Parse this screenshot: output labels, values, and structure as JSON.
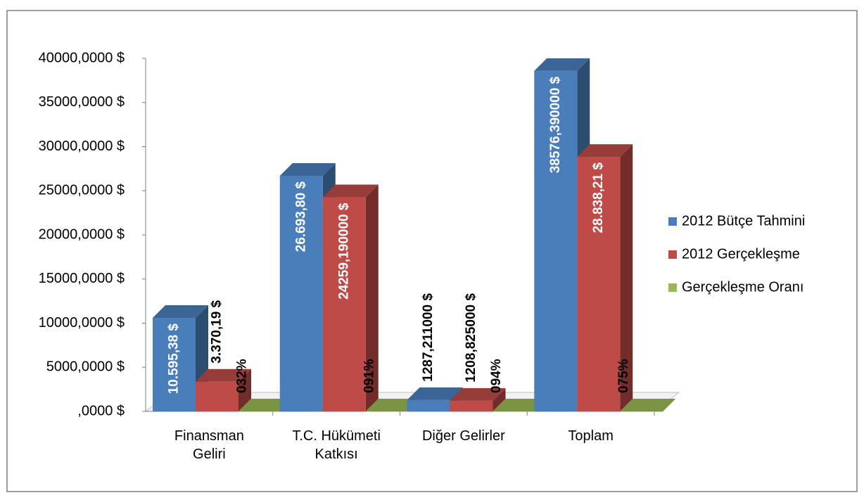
{
  "chart_data": {
    "type": "bar3d",
    "categories": [
      "Finansman Geliri",
      "T.C. Hükümeti Katkısı",
      "Diğer Gelirler",
      "Toplam"
    ],
    "series": [
      {
        "name": "2012 Bütçe Tahmini",
        "color": "#4a7ebb",
        "values": [
          10595.38,
          26693.8,
          1287.211,
          38576.39
        ],
        "value_labels": [
          "10.595,38 $",
          "26.693,80 $",
          "1287,211000 $",
          "38576,390000 $"
        ]
      },
      {
        "name": "2012 Gerçekleşme",
        "color": "#be4b48",
        "values": [
          3370.19,
          24259.19,
          1208.825,
          28838.21
        ],
        "value_labels": [
          "3.370,19 $",
          "24259,190000 $",
          "1208,825000 $",
          "28.838,21 $"
        ]
      },
      {
        "name": "Gerçekleşme Oranı",
        "color": "#98b954",
        "values": [
          0.32,
          0.91,
          0.94,
          0.75
        ],
        "value_labels": [
          "032%",
          "091%",
          "094%",
          "075%"
        ]
      }
    ],
    "ylim": [
      0,
      40000
    ],
    "yticks": [
      {
        "value": 0,
        "label": ",0000 $"
      },
      {
        "value": 5000,
        "label": "5000,0000 $"
      },
      {
        "value": 10000,
        "label": "10000,0000 $"
      },
      {
        "value": 15000,
        "label": "15000,0000 $"
      },
      {
        "value": 20000,
        "label": "20000,0000 $"
      },
      {
        "value": 25000,
        "label": "25000,0000 $"
      },
      {
        "value": 30000,
        "label": "30000,0000 $"
      },
      {
        "value": 35000,
        "label": "35000,0000 $"
      },
      {
        "value": 40000,
        "label": "40000,0000 $"
      }
    ],
    "legend": "right"
  }
}
